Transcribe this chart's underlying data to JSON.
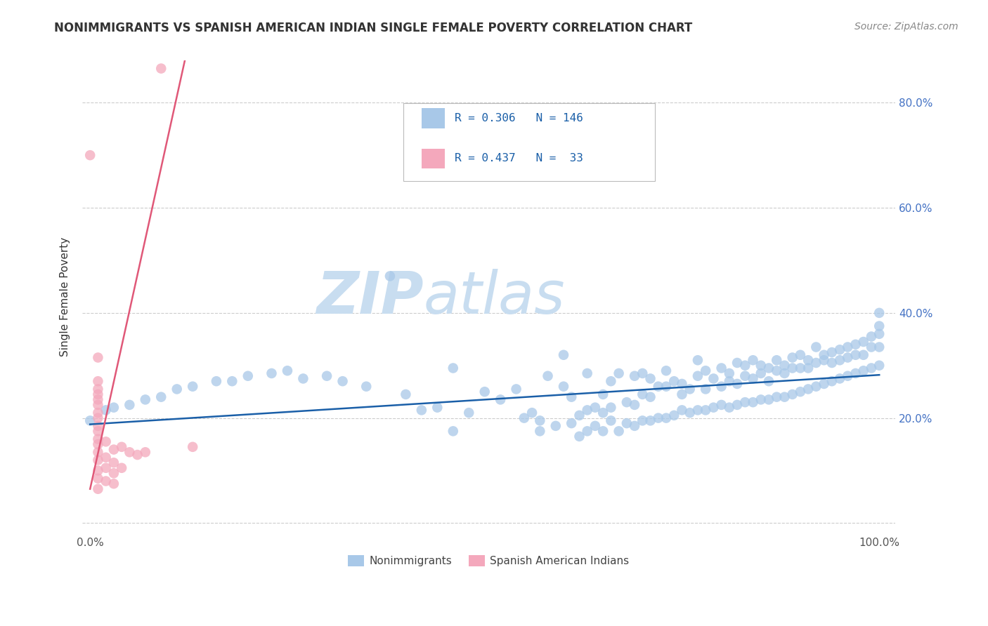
{
  "title": "NONIMMIGRANTS VS SPANISH AMERICAN INDIAN SINGLE FEMALE POVERTY CORRELATION CHART",
  "source": "Source: ZipAtlas.com",
  "ylabel": "Single Female Poverty",
  "watermark": "ZIPatlas",
  "xlim": [
    -0.01,
    1.02
  ],
  "ylim": [
    -0.02,
    0.88
  ],
  "ytick_positions": [
    0.0,
    0.2,
    0.4,
    0.6,
    0.8
  ],
  "ytick_labels": [
    "",
    "20.0%",
    "40.0%",
    "60.0%",
    "80.0%"
  ],
  "blue_color": "#a8c8e8",
  "pink_color": "#f4a8bc",
  "blue_line_color": "#1a5fa8",
  "pink_line_color": "#e05878",
  "grid_color": "#cccccc",
  "title_color": "#333333",
  "source_color": "#888888",
  "watermark_color": "#c8ddf0",
  "legend_box_color": "#dddddd",
  "blue_scatter": [
    [
      0.0,
      0.195
    ],
    [
      0.02,
      0.215
    ],
    [
      0.03,
      0.22
    ],
    [
      0.05,
      0.225
    ],
    [
      0.07,
      0.235
    ],
    [
      0.09,
      0.24
    ],
    [
      0.11,
      0.255
    ],
    [
      0.13,
      0.26
    ],
    [
      0.16,
      0.27
    ],
    [
      0.18,
      0.27
    ],
    [
      0.2,
      0.28
    ],
    [
      0.23,
      0.285
    ],
    [
      0.25,
      0.29
    ],
    [
      0.27,
      0.275
    ],
    [
      0.3,
      0.28
    ],
    [
      0.32,
      0.27
    ],
    [
      0.35,
      0.26
    ],
    [
      0.38,
      0.47
    ],
    [
      0.4,
      0.245
    ],
    [
      0.42,
      0.215
    ],
    [
      0.44,
      0.22
    ],
    [
      0.46,
      0.295
    ],
    [
      0.46,
      0.175
    ],
    [
      0.48,
      0.21
    ],
    [
      0.5,
      0.25
    ],
    [
      0.52,
      0.235
    ],
    [
      0.54,
      0.255
    ],
    [
      0.55,
      0.2
    ],
    [
      0.56,
      0.21
    ],
    [
      0.57,
      0.195
    ],
    [
      0.57,
      0.175
    ],
    [
      0.58,
      0.28
    ],
    [
      0.59,
      0.185
    ],
    [
      0.6,
      0.26
    ],
    [
      0.6,
      0.32
    ],
    [
      0.61,
      0.24
    ],
    [
      0.61,
      0.19
    ],
    [
      0.62,
      0.205
    ],
    [
      0.62,
      0.165
    ],
    [
      0.63,
      0.215
    ],
    [
      0.63,
      0.285
    ],
    [
      0.63,
      0.175
    ],
    [
      0.64,
      0.22
    ],
    [
      0.64,
      0.185
    ],
    [
      0.65,
      0.21
    ],
    [
      0.65,
      0.245
    ],
    [
      0.65,
      0.175
    ],
    [
      0.66,
      0.22
    ],
    [
      0.66,
      0.27
    ],
    [
      0.66,
      0.195
    ],
    [
      0.67,
      0.285
    ],
    [
      0.67,
      0.175
    ],
    [
      0.68,
      0.23
    ],
    [
      0.68,
      0.19
    ],
    [
      0.69,
      0.225
    ],
    [
      0.69,
      0.28
    ],
    [
      0.69,
      0.185
    ],
    [
      0.7,
      0.245
    ],
    [
      0.7,
      0.285
    ],
    [
      0.7,
      0.195
    ],
    [
      0.71,
      0.24
    ],
    [
      0.71,
      0.275
    ],
    [
      0.71,
      0.195
    ],
    [
      0.72,
      0.26
    ],
    [
      0.72,
      0.2
    ],
    [
      0.73,
      0.29
    ],
    [
      0.73,
      0.26
    ],
    [
      0.73,
      0.2
    ],
    [
      0.74,
      0.27
    ],
    [
      0.74,
      0.205
    ],
    [
      0.75,
      0.245
    ],
    [
      0.75,
      0.265
    ],
    [
      0.75,
      0.215
    ],
    [
      0.76,
      0.255
    ],
    [
      0.76,
      0.21
    ],
    [
      0.77,
      0.28
    ],
    [
      0.77,
      0.31
    ],
    [
      0.77,
      0.215
    ],
    [
      0.78,
      0.255
    ],
    [
      0.78,
      0.29
    ],
    [
      0.78,
      0.215
    ],
    [
      0.79,
      0.275
    ],
    [
      0.79,
      0.22
    ],
    [
      0.8,
      0.26
    ],
    [
      0.8,
      0.295
    ],
    [
      0.8,
      0.225
    ],
    [
      0.81,
      0.27
    ],
    [
      0.81,
      0.285
    ],
    [
      0.81,
      0.22
    ],
    [
      0.82,
      0.265
    ],
    [
      0.82,
      0.305
    ],
    [
      0.82,
      0.225
    ],
    [
      0.83,
      0.28
    ],
    [
      0.83,
      0.3
    ],
    [
      0.83,
      0.23
    ],
    [
      0.84,
      0.275
    ],
    [
      0.84,
      0.31
    ],
    [
      0.84,
      0.23
    ],
    [
      0.85,
      0.285
    ],
    [
      0.85,
      0.3
    ],
    [
      0.85,
      0.235
    ],
    [
      0.86,
      0.27
    ],
    [
      0.86,
      0.295
    ],
    [
      0.86,
      0.235
    ],
    [
      0.87,
      0.29
    ],
    [
      0.87,
      0.31
    ],
    [
      0.87,
      0.24
    ],
    [
      0.88,
      0.285
    ],
    [
      0.88,
      0.3
    ],
    [
      0.88,
      0.24
    ],
    [
      0.89,
      0.295
    ],
    [
      0.89,
      0.315
    ],
    [
      0.89,
      0.245
    ],
    [
      0.9,
      0.295
    ],
    [
      0.9,
      0.32
    ],
    [
      0.9,
      0.25
    ],
    [
      0.91,
      0.295
    ],
    [
      0.91,
      0.31
    ],
    [
      0.91,
      0.255
    ],
    [
      0.92,
      0.305
    ],
    [
      0.92,
      0.335
    ],
    [
      0.92,
      0.26
    ],
    [
      0.93,
      0.31
    ],
    [
      0.93,
      0.32
    ],
    [
      0.93,
      0.265
    ],
    [
      0.94,
      0.305
    ],
    [
      0.94,
      0.325
    ],
    [
      0.94,
      0.27
    ],
    [
      0.95,
      0.31
    ],
    [
      0.95,
      0.33
    ],
    [
      0.95,
      0.275
    ],
    [
      0.96,
      0.315
    ],
    [
      0.96,
      0.335
    ],
    [
      0.96,
      0.28
    ],
    [
      0.97,
      0.32
    ],
    [
      0.97,
      0.34
    ],
    [
      0.97,
      0.285
    ],
    [
      0.98,
      0.32
    ],
    [
      0.98,
      0.345
    ],
    [
      0.98,
      0.29
    ],
    [
      0.99,
      0.335
    ],
    [
      0.99,
      0.355
    ],
    [
      0.99,
      0.295
    ],
    [
      1.0,
      0.335
    ],
    [
      1.0,
      0.36
    ],
    [
      1.0,
      0.375
    ],
    [
      1.0,
      0.4
    ],
    [
      1.0,
      0.3
    ]
  ],
  "pink_scatter": [
    [
      0.0,
      0.7
    ],
    [
      0.01,
      0.315
    ],
    [
      0.01,
      0.27
    ],
    [
      0.01,
      0.255
    ],
    [
      0.01,
      0.245
    ],
    [
      0.01,
      0.235
    ],
    [
      0.01,
      0.225
    ],
    [
      0.01,
      0.21
    ],
    [
      0.01,
      0.2
    ],
    [
      0.01,
      0.185
    ],
    [
      0.01,
      0.175
    ],
    [
      0.01,
      0.16
    ],
    [
      0.01,
      0.15
    ],
    [
      0.01,
      0.135
    ],
    [
      0.01,
      0.12
    ],
    [
      0.01,
      0.1
    ],
    [
      0.01,
      0.085
    ],
    [
      0.01,
      0.065
    ],
    [
      0.02,
      0.155
    ],
    [
      0.02,
      0.125
    ],
    [
      0.02,
      0.105
    ],
    [
      0.02,
      0.08
    ],
    [
      0.03,
      0.14
    ],
    [
      0.03,
      0.115
    ],
    [
      0.03,
      0.095
    ],
    [
      0.03,
      0.075
    ],
    [
      0.04,
      0.145
    ],
    [
      0.04,
      0.105
    ],
    [
      0.05,
      0.135
    ],
    [
      0.06,
      0.13
    ],
    [
      0.07,
      0.135
    ],
    [
      0.13,
      0.145
    ],
    [
      0.09,
      0.865
    ]
  ],
  "blue_trendline": [
    [
      0.0,
      0.188
    ],
    [
      1.0,
      0.282
    ]
  ],
  "pink_trendline": [
    [
      0.0,
      0.065
    ],
    [
      0.12,
      0.88
    ]
  ]
}
